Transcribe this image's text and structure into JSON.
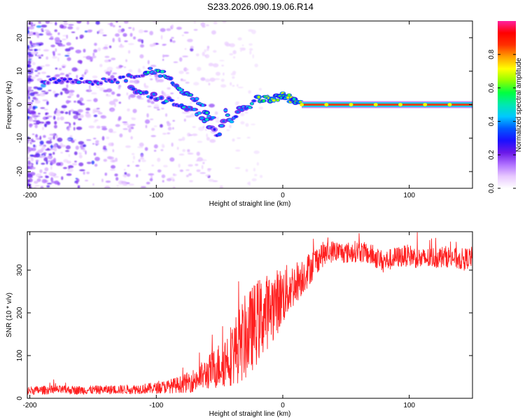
{
  "title": "S233.2026.090.19.06.R14",
  "chart_data": [
    {
      "type": "heatmap",
      "title": "S233.2026.090.19.06.R14",
      "xlabel": "Height of straight line (km)",
      "ylabel": "Frequency (Hz)",
      "xlim": [
        -202,
        150
      ],
      "ylim": [
        -25,
        25
      ],
      "xticks": [
        -200,
        -100,
        0,
        100
      ],
      "yticks": [
        -20,
        -10,
        0,
        10,
        20
      ],
      "colorbar": {
        "label": "Normalized spectral amplitude",
        "range": [
          0,
          1
        ],
        "ticks": [
          0.0,
          0.2,
          0.4,
          0.6,
          0.8
        ],
        "colors": [
          "#ffffff",
          "#e8c8ff",
          "#b070ff",
          "#6a18e8",
          "#1a10ff",
          "#0058ff",
          "#00c8ff",
          "#00e8b0",
          "#00ff40",
          "#90ff00",
          "#ffff00",
          "#ffa000",
          "#ff3000",
          "#ff0000",
          "#ff20a0"
        ]
      },
      "ridge": {
        "x": [
          -140,
          -120,
          -105,
          -95,
          -85,
          -75,
          -65,
          -55,
          -50,
          -45,
          -40,
          -35,
          -30,
          -25,
          -20,
          -15,
          -10,
          -5,
          0,
          5,
          10,
          15,
          150
        ],
        "y": [
          7,
          8,
          10,
          9,
          6,
          3,
          0,
          -4,
          -8,
          -2,
          -5,
          -2,
          -1,
          0,
          1.5,
          2,
          1.5,
          2,
          3,
          2,
          1,
          0,
          0
        ]
      },
      "lower_branch": {
        "x": [
          -120,
          -110,
          -100,
          -90,
          -80,
          -70,
          -60,
          -52
        ],
        "y": [
          5,
          4,
          2,
          1,
          0,
          -2,
          -5,
          -9
        ]
      },
      "tone": {
        "frequency_hz": 0,
        "x_start": 15,
        "x_end": 150,
        "amplitude": 0.85
      }
    },
    {
      "type": "line",
      "xlabel": "Height of straight line (km)",
      "ylabel": "SNR (10 * v/v)",
      "xlim": [
        -202,
        150
      ],
      "ylim": [
        0,
        390
      ],
      "xticks": [
        -200,
        -100,
        0,
        100
      ],
      "yticks": [
        0,
        100,
        200,
        300
      ],
      "color": "#ff2020",
      "series": [
        {
          "name": "SNR",
          "x": [
            -202,
            -180,
            -160,
            -140,
            -120,
            -100,
            -90,
            -80,
            -70,
            -60,
            -50,
            -40,
            -30,
            -20,
            -10,
            0,
            10,
            20,
            30,
            40,
            50,
            60,
            70,
            80,
            90,
            100,
            110,
            120,
            130,
            140,
            150
          ],
          "values": [
            18,
            20,
            19,
            20,
            21,
            24,
            28,
            33,
            42,
            58,
            78,
            105,
            140,
            180,
            210,
            240,
            270,
            300,
            335,
            345,
            340,
            345,
            335,
            320,
            330,
            335,
            325,
            330,
            332,
            325,
            330
          ],
          "noise": [
            10,
            10,
            10,
            10,
            11,
            13,
            16,
            20,
            28,
            38,
            55,
            75,
            100,
            100,
            85,
            70,
            50,
            40,
            30,
            25,
            25,
            25,
            25,
            25,
            25,
            25,
            25,
            25,
            25,
            25,
            25
          ]
        }
      ]
    }
  ]
}
